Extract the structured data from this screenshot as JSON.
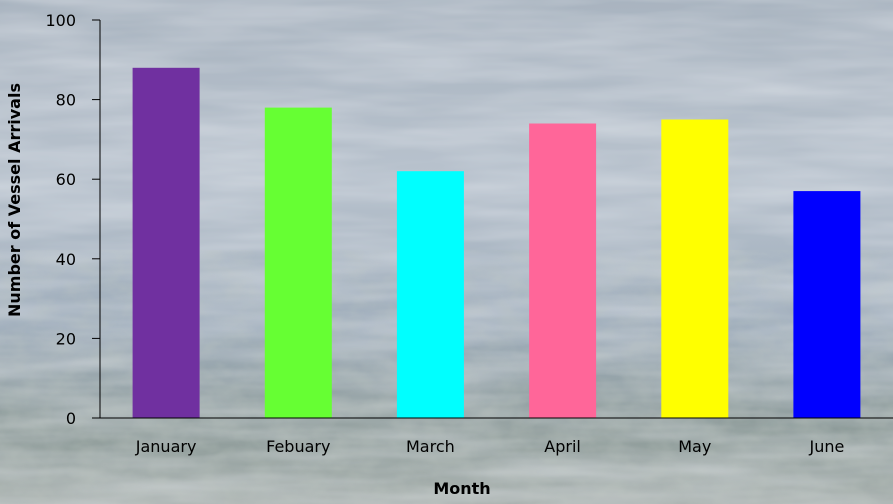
{
  "chart_data": {
    "type": "bar",
    "title": "",
    "xlabel": "Month",
    "ylabel": "Number of Vessel Arrivals",
    "categories": [
      "January",
      "Febuary",
      "March",
      "April",
      "May",
      "June"
    ],
    "values": [
      88,
      78,
      62,
      74,
      75,
      57
    ],
    "bar_colors": [
      "#7030A0",
      "#66FF33",
      "#00FFFF",
      "#FF6699",
      "#FFFF00",
      "#0000FF"
    ],
    "ylim": [
      0,
      100
    ],
    "yticks": [
      0,
      20,
      40,
      60,
      80,
      100
    ],
    "grid": false,
    "legend": "none"
  },
  "background": {
    "description_colors": [
      "#7d8ea0",
      "#a9b6c4",
      "#c9d1d9",
      "#8a9a8e"
    ]
  }
}
